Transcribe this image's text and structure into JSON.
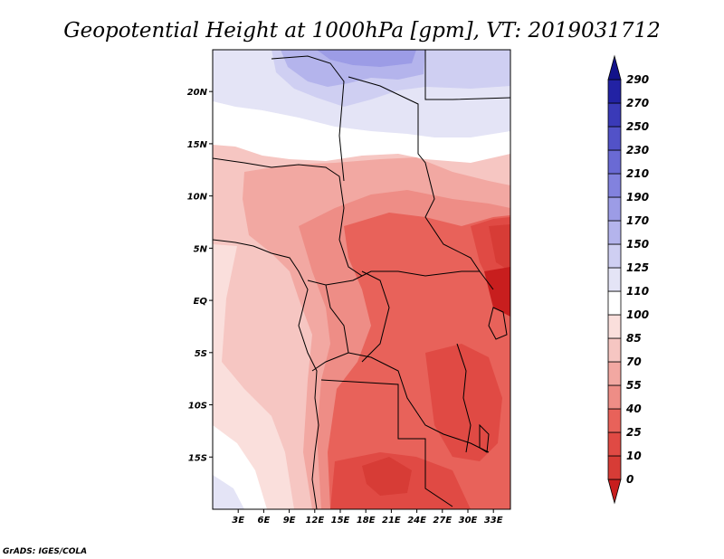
{
  "chart_data": {
    "type": "heatmap",
    "title": "Geopotential Height at 1000hPa [gpm], VT: 2019031712",
    "variable": "Geopotential Height",
    "level": "1000hPa",
    "units": "gpm",
    "valid_time": "2019031712",
    "xlim": [
      0,
      35
    ],
    "ylim": [
      -20,
      24
    ],
    "x_ticks": [
      3,
      6,
      9,
      12,
      15,
      18,
      21,
      24,
      27,
      30,
      33
    ],
    "x_tick_labels": [
      "3E",
      "6E",
      "9E",
      "12E",
      "15E",
      "18E",
      "21E",
      "24E",
      "27E",
      "30E",
      "33E"
    ],
    "y_ticks": [
      20,
      15,
      10,
      5,
      0,
      -5,
      -10,
      -15
    ],
    "y_tick_labels": [
      "20N",
      "15N",
      "10N",
      "5N",
      "EQ",
      "5S",
      "10S",
      "15S"
    ],
    "colorbar": {
      "levels": [
        0,
        10,
        25,
        40,
        55,
        70,
        85,
        100,
        110,
        125,
        150,
        170,
        190,
        210,
        230,
        250,
        270,
        290
      ],
      "labels": [
        "0",
        "10",
        "25",
        "40",
        "55",
        "70",
        "85",
        "100",
        "110",
        "125",
        "150",
        "170",
        "190",
        "210",
        "230",
        "250",
        "270",
        "290"
      ],
      "colors": [
        "#c81e1e",
        "#d73c36",
        "#e04a44",
        "#e8625a",
        "#ee8d86",
        "#f2a8a2",
        "#f6c6c2",
        "#fadfdc",
        "#ffffff",
        "#e4e4f6",
        "#cfcff2",
        "#b4b4ec",
        "#9c9ce6",
        "#8282de",
        "#6a6ad4",
        "#5252c8",
        "#3a3ab8",
        "#2222a4",
        "#12128a"
      ]
    }
  },
  "footer": {
    "credit": "GrADS: IGES/COLA"
  }
}
